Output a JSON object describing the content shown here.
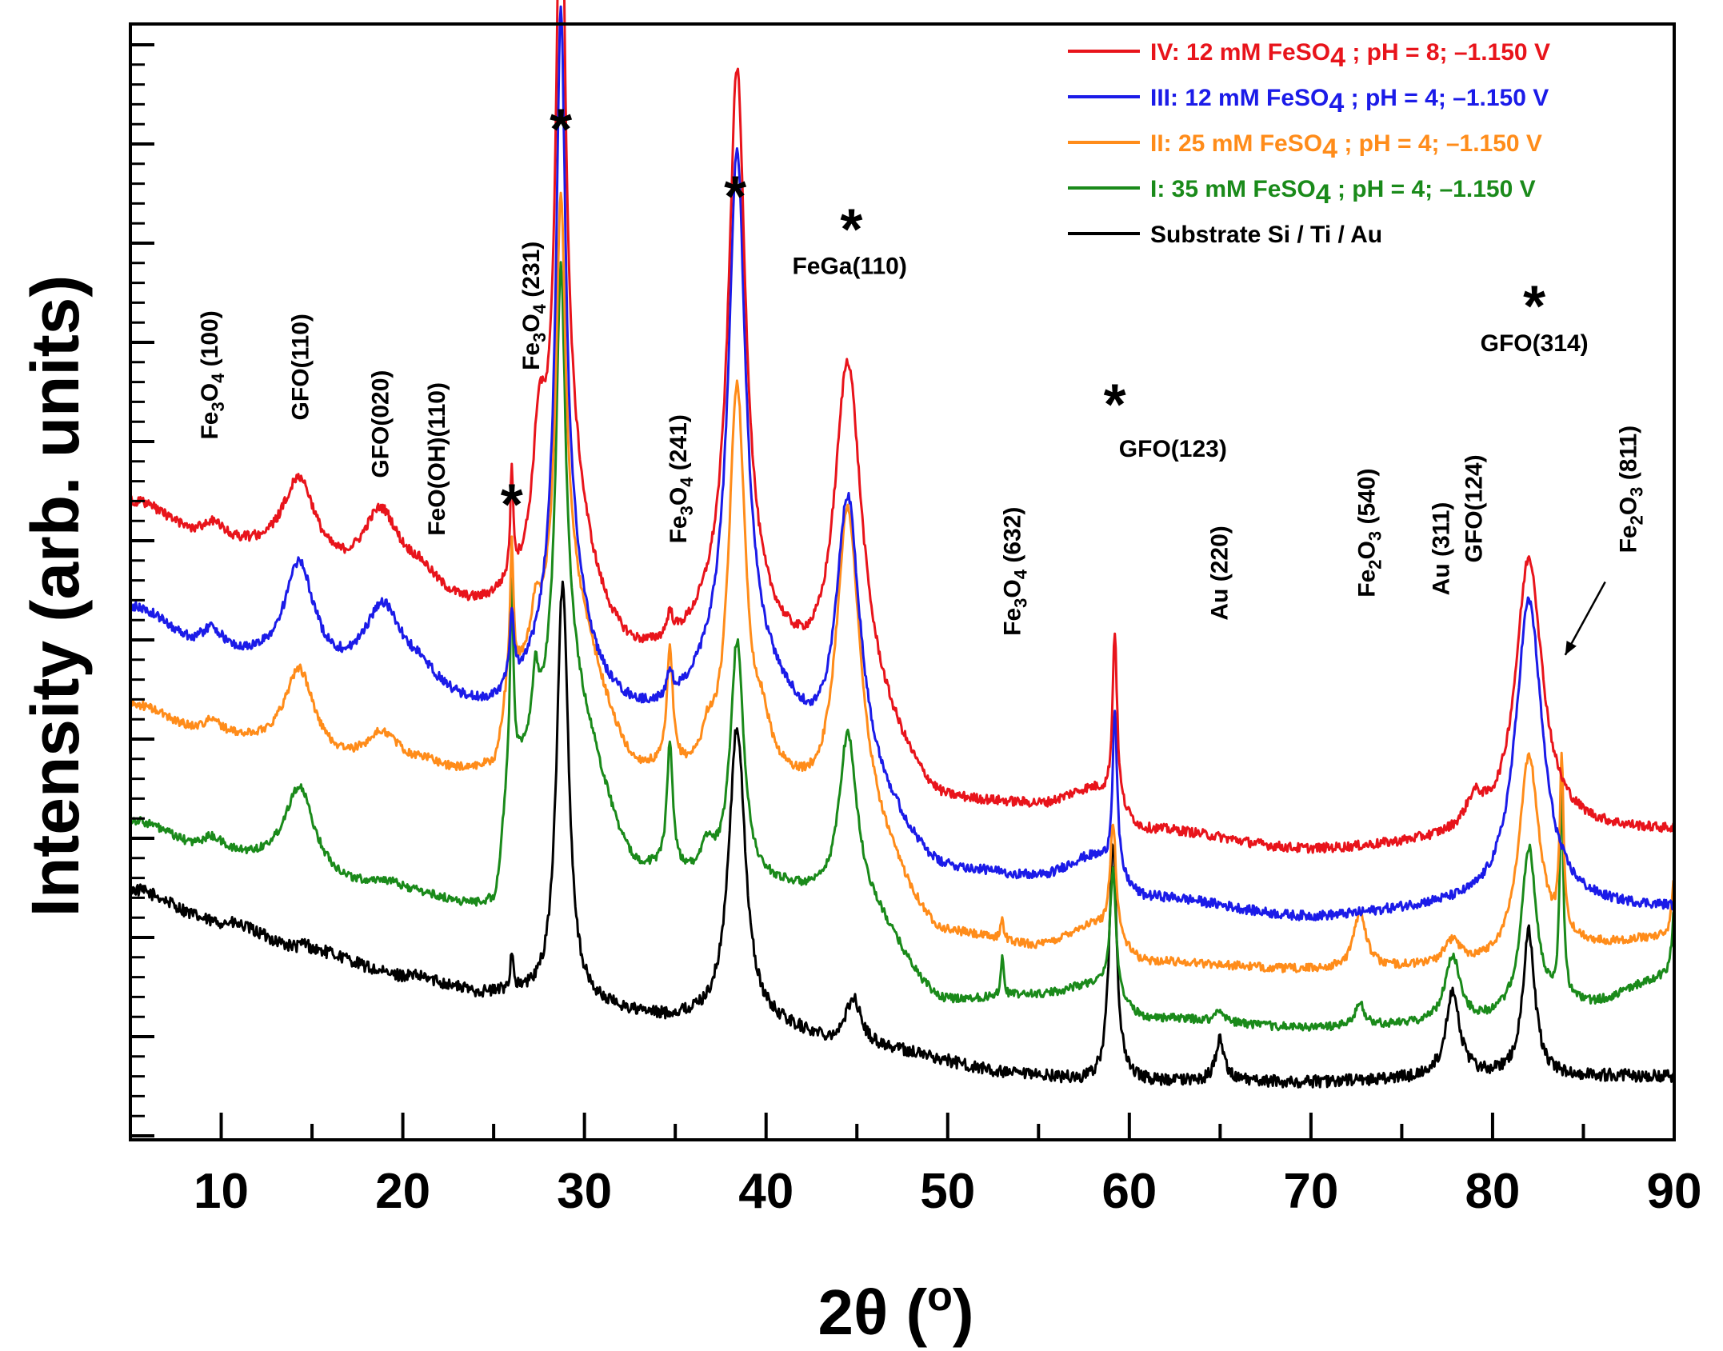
{
  "chart_data": {
    "type": "line",
    "xlabel": "2θ (°)",
    "xlabel_parts": {
      "main": "2θ (",
      "sup": "o",
      "end": ")"
    },
    "ylabel": "Intensity (arb. units)",
    "xlim": [
      5,
      90
    ],
    "ylim": [
      0,
      5.8
    ],
    "xticks": [
      "10",
      "20",
      "30",
      "40",
      "50",
      "60",
      "70",
      "80",
      "90"
    ],
    "grid": false,
    "legend_position": "top-right",
    "series": [
      {
        "id": "s4",
        "name": "IV: 12 mM FeSO4 ; pH = 8; –1.150 V",
        "legend_parts": {
          "pre": "IV: 12 mM FeSO",
          "sub": "4",
          "post": " ; pH = 8; –1.150 V"
        },
        "color": "#e8141b",
        "offset": 2.72,
        "noise": 0.025,
        "baseline": [
          [
            5,
            3.3
          ],
          [
            10,
            3.05
          ],
          [
            20,
            2.78
          ],
          [
            25,
            2.65
          ],
          [
            30,
            2.45
          ],
          [
            33,
            2.35
          ],
          [
            40,
            2.3
          ],
          [
            45,
            2.15
          ],
          [
            50,
            1.72
          ],
          [
            55,
            1.72
          ],
          [
            58,
            1.8
          ],
          [
            61,
            1.6
          ],
          [
            70,
            1.5
          ],
          [
            80,
            1.55
          ],
          [
            85,
            1.6
          ],
          [
            90,
            1.6
          ]
        ],
        "peaks": [
          [
            9.5,
            0.12,
            0.8
          ],
          [
            14.3,
            0.45,
            1.1
          ],
          [
            18.8,
            0.42,
            1.3
          ],
          [
            21,
            0.08,
            1
          ],
          [
            26,
            0.55,
            0.1
          ],
          [
            27.5,
            0.6,
            0.4
          ],
          [
            28.7,
            3.3,
            0.28
          ],
          [
            28.9,
            1.1,
            1.4
          ],
          [
            34.7,
            0.12,
            0.2
          ],
          [
            38.4,
            2.75,
            0.55
          ],
          [
            38.3,
            0.45,
            2.5
          ],
          [
            44.5,
            1.8,
            0.9
          ],
          [
            59.2,
            0.9,
            0.15
          ],
          [
            79,
            0.15,
            0.6
          ],
          [
            82,
            1.45,
            0.9
          ]
        ]
      },
      {
        "id": "s3",
        "name": "III: 12 mM FeSO4 ; pH = 4; –1.150 V",
        "legend_parts": {
          "pre": "III: 12 mM FeSO",
          "sub": "4",
          "post": " ; pH = 4; –1.150 V"
        },
        "color": "#1b1be8",
        "offset": 2.12,
        "noise": 0.025,
        "baseline": [
          [
            5,
            2.75
          ],
          [
            10,
            2.47
          ],
          [
            20,
            2.3
          ],
          [
            25,
            2.15
          ],
          [
            30,
            2.1
          ],
          [
            35,
            2.05
          ],
          [
            40,
            2.05
          ],
          [
            45,
            1.75
          ],
          [
            50,
            1.37
          ],
          [
            55,
            1.35
          ],
          [
            58,
            1.45
          ],
          [
            61,
            1.25
          ],
          [
            70,
            1.15
          ],
          [
            78,
            1.2
          ],
          [
            85,
            1.2
          ],
          [
            90,
            1.2
          ]
        ],
        "peaks": [
          [
            9.5,
            0.15,
            0.8
          ],
          [
            14.3,
            0.55,
            1
          ],
          [
            18.9,
            0.42,
            1.3
          ],
          [
            21,
            0.06,
            1
          ],
          [
            26,
            0.35,
            0.15
          ],
          [
            28.7,
            2.85,
            0.3
          ],
          [
            28.9,
            0.9,
            1.4
          ],
          [
            34.7,
            0.12,
            0.2
          ],
          [
            38.4,
            2.6,
            0.55
          ],
          [
            38.3,
            0.45,
            2.5
          ],
          [
            44.5,
            1.5,
            0.8
          ],
          [
            59.2,
            0.85,
            0.15
          ],
          [
            82,
            1.6,
            0.9
          ]
        ]
      },
      {
        "id": "s2",
        "name": "II: 25 mM FeSO4 ; pH = 4; –1.150 V",
        "legend_parts": {
          "pre": "II: 25 mM FeSO",
          "sub": "4",
          "post": " ; pH = 4; –1.150 V"
        },
        "color": "#ff8c1a",
        "offset": 1.57,
        "noise": 0.022,
        "baseline": [
          [
            5,
            2.25
          ],
          [
            10,
            2.05
          ],
          [
            20,
            1.85
          ],
          [
            25,
            1.85
          ],
          [
            26,
            2.25
          ],
          [
            30,
            2.2
          ],
          [
            33,
            1.85
          ],
          [
            40,
            1.8
          ],
          [
            45,
            1.55
          ],
          [
            50,
            1.05
          ],
          [
            55,
            1.0
          ],
          [
            58,
            1.1
          ],
          [
            61,
            0.92
          ],
          [
            70,
            0.88
          ],
          [
            80,
            0.9
          ],
          [
            85,
            1.0
          ],
          [
            90,
            1.05
          ]
        ],
        "peaks": [
          [
            9.5,
            0.1,
            0.8
          ],
          [
            14.3,
            0.45,
            1
          ],
          [
            18.9,
            0.22,
            1.3
          ],
          [
            21.3,
            0.05,
            1
          ],
          [
            26,
            0.7,
            0.1
          ],
          [
            27.3,
            0.2,
            0.3
          ],
          [
            28.7,
            1.95,
            0.3
          ],
          [
            28.9,
            0.75,
            1.4
          ],
          [
            34.7,
            0.6,
            0.2
          ],
          [
            36.8,
            0.15,
            0.4
          ],
          [
            38.4,
            2.05,
            0.55
          ],
          [
            39.8,
            0.2,
            0.5
          ],
          [
            44.5,
            1.7,
            0.8
          ],
          [
            53,
            0.12,
            0.1
          ],
          [
            59.1,
            0.6,
            0.2
          ],
          [
            72.7,
            0.3,
            0.4
          ],
          [
            77.8,
            0.12,
            0.5
          ],
          [
            82,
            1.05,
            0.7
          ],
          [
            83.8,
            0.9,
            0.12
          ],
          [
            90,
            0.3,
            0.15
          ]
        ]
      },
      {
        "id": "s1",
        "name": "I: 35 mM FeSO4 ; pH = 4; –1.150 V",
        "legend_parts": {
          "pre": "I: 35 mM FeSO",
          "sub": "4",
          "post": " ; pH = 4; –1.150 V"
        },
        "color": "#1a8a1a",
        "offset": 1.02,
        "noise": 0.022,
        "baseline": [
          [
            5,
            1.65
          ],
          [
            10,
            1.45
          ],
          [
            20,
            1.25
          ],
          [
            25,
            1.15
          ],
          [
            26,
            1.8
          ],
          [
            30,
            1.75
          ],
          [
            33,
            1.35
          ],
          [
            40,
            1.3
          ],
          [
            45,
            1.2
          ],
          [
            50,
            0.72
          ],
          [
            55,
            0.75
          ],
          [
            58,
            0.8
          ],
          [
            61,
            0.63
          ],
          [
            70,
            0.58
          ],
          [
            78,
            0.6
          ],
          [
            85,
            0.7
          ],
          [
            90,
            0.85
          ]
        ],
        "peaks": [
          [
            9.5,
            0.1,
            0.8
          ],
          [
            14.3,
            0.45,
            1
          ],
          [
            19,
            0.06,
            1.2
          ],
          [
            26,
            0.95,
            0.1
          ],
          [
            27.3,
            0.3,
            0.2
          ],
          [
            28.7,
            2.05,
            0.3
          ],
          [
            28.9,
            0.75,
            1.4
          ],
          [
            34.7,
            0.65,
            0.2
          ],
          [
            36.8,
            0.15,
            0.4
          ],
          [
            38.4,
            1.25,
            0.45
          ],
          [
            44.5,
            0.9,
            0.6
          ],
          [
            53,
            0.2,
            0.1
          ],
          [
            59.1,
            0.65,
            0.2
          ],
          [
            65,
            0.06,
            0.3
          ],
          [
            72.7,
            0.12,
            0.3
          ],
          [
            77.8,
            0.35,
            0.5
          ],
          [
            82,
            0.85,
            0.5
          ],
          [
            83.8,
            1.1,
            0.12
          ],
          [
            90,
            0.35,
            0.15
          ]
        ]
      },
      {
        "id": "s0",
        "name": "Substrate Si / Ti / Au",
        "legend_parts": {
          "pre": "Substrate Si / Ti / Au",
          "sub": "",
          "post": ""
        },
        "color": "#000000",
        "offset": 0,
        "noise": 0.032,
        "baseline": [
          [
            5,
            1.3
          ],
          [
            10,
            1.13
          ],
          [
            15,
            0.98
          ],
          [
            20,
            0.85
          ],
          [
            25,
            0.75
          ],
          [
            30,
            0.68
          ],
          [
            35,
            0.62
          ],
          [
            40,
            0.58
          ],
          [
            45,
            0.48
          ],
          [
            55,
            0.33
          ],
          [
            58,
            0.3
          ],
          [
            62,
            0.3
          ],
          [
            70,
            0.3
          ],
          [
            80,
            0.33
          ],
          [
            90,
            0.33
          ]
        ],
        "peaks": [
          [
            14.6,
            0.04,
            0.3
          ],
          [
            26,
            0.2,
            0.1
          ],
          [
            28.8,
            2.2,
            0.4
          ],
          [
            38.4,
            1.55,
            0.55
          ],
          [
            44.8,
            0.25,
            0.5
          ],
          [
            59.1,
            1.25,
            0.25
          ],
          [
            65,
            0.22,
            0.3
          ],
          [
            77.8,
            0.45,
            0.45
          ],
          [
            82,
            0.75,
            0.4
          ]
        ]
      }
    ],
    "peak_labels": [
      {
        "id": "fe3o4-100",
        "text": "Fe3O4 (100)",
        "x": 9.8,
        "y": 3.64,
        "pre": "Fe",
        "s1": "3",
        "mid": "O",
        "s2": "4",
        "post": " (100)"
      },
      {
        "id": "gfo-110",
        "text": "GFO(110)",
        "x": 14.8,
        "y": 3.74,
        "pre": "GFO(110)",
        "s1": "",
        "mid": "",
        "s2": "",
        "post": ""
      },
      {
        "id": "gfo-020",
        "text": "GFO(020)",
        "x": 19.2,
        "y": 3.44,
        "pre": "GFO(020)",
        "s1": "",
        "mid": "",
        "s2": "",
        "post": ""
      },
      {
        "id": "feooh-110",
        "text": "FeO(OH)(110)",
        "x": 22.3,
        "y": 3.14,
        "pre": "FeO(OH)(110)",
        "s1": "",
        "mid": "",
        "s2": "",
        "post": ""
      },
      {
        "id": "fe3o4-231",
        "text": "Fe3O4 (231)",
        "x": 27.5,
        "y": 4.0,
        "pre": "Fe",
        "s1": "3",
        "mid": "O",
        "s2": "4",
        "post": " (231)"
      },
      {
        "id": "fe3o4-241",
        "text": "Fe3O4 (241)",
        "x": 35.6,
        "y": 3.1,
        "pre": "Fe",
        "s1": "3",
        "mid": "O",
        "s2": "4",
        "post": " (241)"
      },
      {
        "id": "fe3o4-632",
        "text": "Fe3O4 (632)",
        "x": 54.0,
        "y": 2.62,
        "pre": "Fe",
        "s1": "3",
        "mid": "O",
        "s2": "4",
        "post": " (632)"
      },
      {
        "id": "au-220",
        "text": "Au (220)",
        "x": 65.4,
        "y": 2.7,
        "pre": "Au (220)",
        "s1": "",
        "mid": "",
        "s2": "",
        "post": ""
      },
      {
        "id": "fe2o3-540",
        "text": "Fe2O3 (540)",
        "x": 73.5,
        "y": 2.82,
        "pre": "Fe",
        "s1": "2",
        "mid": "O",
        "s2": "3",
        "post": " (540)"
      },
      {
        "id": "au-311",
        "text": "Au (311)",
        "x": 77.6,
        "y": 2.83,
        "pre": "Au (311)",
        "s1": "",
        "mid": "",
        "s2": "",
        "post": ""
      },
      {
        "id": "gfo-124",
        "text": "GFO(124)",
        "x": 79.4,
        "y": 3.0,
        "pre": "GFO(124)",
        "s1": "",
        "mid": "",
        "s2": "",
        "post": ""
      },
      {
        "id": "fe2o3-811",
        "text": "Fe2O3 (811)",
        "x": 87.9,
        "y": 3.05,
        "pre": "Fe",
        "s1": "2",
        "mid": "O",
        "s2": "3",
        "post": " (811)"
      }
    ],
    "horizontal_labels": [
      {
        "id": "fega-110",
        "text": "FeGa(110)",
        "x": 44.6,
        "y": 4.5
      },
      {
        "id": "gfo-123",
        "text": "GFO(123)",
        "x": 62.4,
        "y": 3.55
      },
      {
        "id": "gfo-314",
        "text": "GFO(314)",
        "x": 82.3,
        "y": 4.1
      }
    ],
    "stars": [
      {
        "id": "star-26",
        "x": 26.0,
        "y": 3.2
      },
      {
        "id": "star-28",
        "x": 28.7,
        "y": 5.15
      },
      {
        "id": "star-38",
        "x": 38.3,
        "y": 4.8
      },
      {
        "id": "star-44",
        "x": 44.7,
        "y": 4.63
      },
      {
        "id": "star-59",
        "x": 59.2,
        "y": 3.72
      },
      {
        "id": "star-82",
        "x": 82.3,
        "y": 4.23
      }
    ],
    "arrow": {
      "from": [
        86.2,
        2.9
      ],
      "to": [
        84.0,
        2.52
      ]
    }
  }
}
